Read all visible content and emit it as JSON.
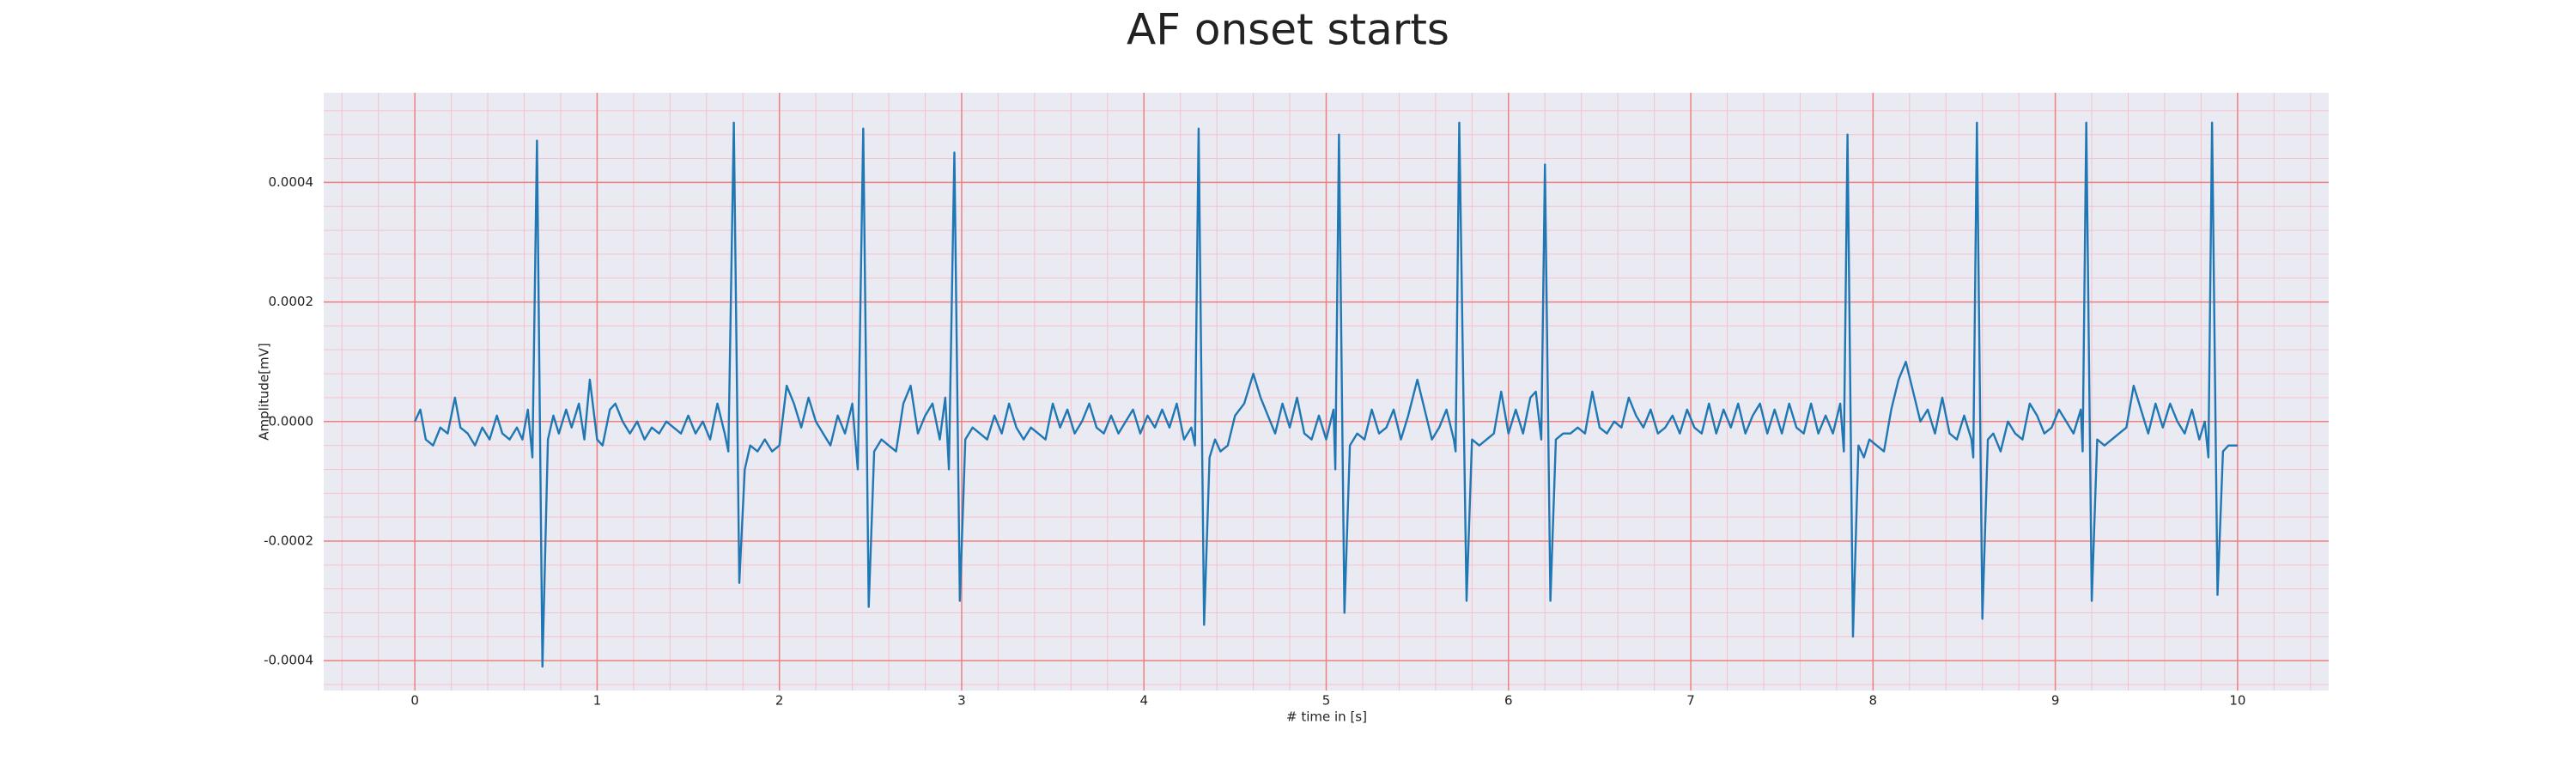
{
  "chart_data": {
    "type": "line",
    "title": "AF onset starts",
    "x_label": "# time in [s]",
    "y_label": "Amplitude[mV]",
    "color": "#1f77b4",
    "x": [
      0,
      0.03,
      0.06,
      0.1,
      0.14,
      0.18,
      0.22,
      0.25,
      0.29,
      0.33,
      0.37,
      0.41,
      0.45,
      0.48,
      0.52,
      0.56,
      0.59,
      0.62,
      0.645,
      0.67,
      0.7,
      0.73,
      0.76,
      0.79,
      0.83,
      0.86,
      0.9,
      0.93,
      0.96,
      1,
      1.03,
      1.07,
      1.1,
      1.14,
      1.18,
      1.22,
      1.26,
      1.3,
      1.34,
      1.38,
      1.42,
      1.46,
      1.5,
      1.54,
      1.58,
      1.62,
      1.66,
      1.7,
      1.72,
      1.75,
      1.78,
      1.81,
      1.84,
      1.88,
      1.92,
      1.96,
      2,
      2.04,
      2.08,
      2.12,
      2.16,
      2.2,
      2.24,
      2.28,
      2.32,
      2.36,
      2.4,
      2.43,
      2.46,
      2.49,
      2.52,
      2.56,
      2.6,
      2.64,
      2.68,
      2.72,
      2.76,
      2.8,
      2.84,
      2.88,
      2.91,
      2.93,
      2.96,
      2.99,
      3.02,
      3.06,
      3.1,
      3.14,
      3.18,
      3.22,
      3.26,
      3.3,
      3.34,
      3.38,
      3.42,
      3.46,
      3.5,
      3.54,
      3.58,
      3.62,
      3.66,
      3.7,
      3.74,
      3.78,
      3.82,
      3.86,
      3.9,
      3.94,
      3.98,
      4.02,
      4.06,
      4.1,
      4.14,
      4.18,
      4.22,
      4.26,
      4.28,
      4.3,
      4.33,
      4.36,
      4.39,
      4.42,
      4.46,
      4.5,
      4.55,
      4.6,
      4.64,
      4.68,
      4.72,
      4.76,
      4.8,
      4.84,
      4.88,
      4.92,
      4.96,
      5,
      5.04,
      5.05,
      5.07,
      5.1,
      5.13,
      5.17,
      5.21,
      5.25,
      5.29,
      5.33,
      5.37,
      5.41,
      5.45,
      5.5,
      5.54,
      5.58,
      5.62,
      5.66,
      5.7,
      5.71,
      5.73,
      5.77,
      5.8,
      5.84,
      5.88,
      5.92,
      5.96,
      6,
      6.04,
      6.08,
      6.12,
      6.15,
      6.18,
      6.2,
      6.23,
      6.26,
      6.3,
      6.34,
      6.38,
      6.42,
      6.46,
      6.5,
      6.54,
      6.58,
      6.62,
      6.66,
      6.7,
      6.74,
      6.78,
      6.82,
      6.86,
      6.9,
      6.94,
      6.98,
      7.02,
      7.06,
      7.1,
      7.14,
      7.18,
      7.22,
      7.26,
      7.3,
      7.34,
      7.38,
      7.42,
      7.46,
      7.5,
      7.54,
      7.58,
      7.62,
      7.66,
      7.7,
      7.74,
      7.78,
      7.82,
      7.84,
      7.86,
      7.89,
      7.92,
      7.95,
      7.98,
      8.02,
      8.06,
      8.1,
      8.14,
      8.18,
      8.22,
      8.26,
      8.3,
      8.34,
      8.38,
      8.42,
      8.46,
      8.5,
      8.54,
      8.55,
      8.57,
      8.6,
      8.63,
      8.66,
      8.7,
      8.74,
      8.78,
      8.82,
      8.86,
      8.9,
      8.94,
      8.98,
      9.02,
      9.06,
      9.1,
      9.14,
      9.15,
      9.17,
      9.2,
      9.23,
      9.27,
      9.31,
      9.35,
      9.39,
      9.43,
      9.47,
      9.51,
      9.55,
      9.59,
      9.63,
      9.67,
      9.71,
      9.75,
      9.79,
      9.82,
      9.84,
      9.86,
      9.89,
      9.92,
      9.95,
      9.98,
      10
    ],
    "values": [
      0,
      2e-05,
      -3e-05,
      -4e-05,
      -1e-05,
      -2e-05,
      4e-05,
      -1e-05,
      -2e-05,
      -4e-05,
      -1e-05,
      -3e-05,
      1e-05,
      -2e-05,
      -3e-05,
      -1e-05,
      -3e-05,
      2e-05,
      -6e-05,
      0.00047,
      -0.00041,
      -3e-05,
      1e-05,
      -2e-05,
      2e-05,
      -1e-05,
      3e-05,
      -3e-05,
      7e-05,
      -3e-05,
      -4e-05,
      2e-05,
      3e-05,
      0,
      -2e-05,
      0,
      -3e-05,
      -1e-05,
      -2e-05,
      0,
      -1e-05,
      -2e-05,
      1e-05,
      -2e-05,
      0,
      -3e-05,
      3e-05,
      -2e-05,
      -5e-05,
      0.0005,
      -0.00027,
      -8e-05,
      -4e-05,
      -5e-05,
      -3e-05,
      -5e-05,
      -4e-05,
      6e-05,
      3e-05,
      -1e-05,
      4e-05,
      0,
      -2e-05,
      -4e-05,
      1e-05,
      -2e-05,
      3e-05,
      -8e-05,
      0.00049,
      -0.00031,
      -5e-05,
      -3e-05,
      -4e-05,
      -5e-05,
      3e-05,
      6e-05,
      -2e-05,
      1e-05,
      3e-05,
      -3e-05,
      4e-05,
      -8e-05,
      0.00045,
      -0.0003,
      -3e-05,
      -1e-05,
      -2e-05,
      -3e-05,
      1e-05,
      -2e-05,
      3e-05,
      -1e-05,
      -3e-05,
      -1e-05,
      -2e-05,
      -3e-05,
      3e-05,
      -1e-05,
      2e-05,
      -2e-05,
      0,
      3e-05,
      -1e-05,
      -2e-05,
      1e-05,
      -2e-05,
      0,
      2e-05,
      -2e-05,
      1e-05,
      -1e-05,
      2e-05,
      -1e-05,
      3e-05,
      -3e-05,
      -1e-05,
      -4e-05,
      0.00049,
      -0.00034,
      -6e-05,
      -3e-05,
      -5e-05,
      -4e-05,
      1e-05,
      3e-05,
      8e-05,
      4e-05,
      1e-05,
      -2e-05,
      3e-05,
      -1e-05,
      4e-05,
      -2e-05,
      -3e-05,
      1e-05,
      -3e-05,
      2e-05,
      -8e-05,
      0.00048,
      -0.00032,
      -4e-05,
      -2e-05,
      -3e-05,
      2e-05,
      -2e-05,
      -1e-05,
      2e-05,
      -3e-05,
      1e-05,
      7e-05,
      2e-05,
      -3e-05,
      -1e-05,
      2e-05,
      -3e-05,
      -5e-05,
      0.0005,
      -0.0003,
      -3e-05,
      -4e-05,
      -3e-05,
      -2e-05,
      5e-05,
      -2e-05,
      2e-05,
      -2e-05,
      4e-05,
      5e-05,
      -3e-05,
      0.00043,
      -0.0003,
      -3e-05,
      -2e-05,
      -2e-05,
      -1e-05,
      -2e-05,
      5e-05,
      -1e-05,
      -2e-05,
      0,
      -1e-05,
      4e-05,
      1e-05,
      -1e-05,
      2e-05,
      -2e-05,
      -1e-05,
      1e-05,
      -2e-05,
      2e-05,
      -1e-05,
      -2e-05,
      3e-05,
      -2e-05,
      2e-05,
      -1e-05,
      3e-05,
      -2e-05,
      1e-05,
      3e-05,
      -2e-05,
      2e-05,
      -2e-05,
      3e-05,
      -1e-05,
      -2e-05,
      3e-05,
      -2e-05,
      1e-05,
      -2e-05,
      3e-05,
      -5e-05,
      0.00048,
      -0.00036,
      -4e-05,
      -6e-05,
      -3e-05,
      -4e-05,
      -5e-05,
      2e-05,
      7e-05,
      0.0001,
      5e-05,
      0,
      2e-05,
      -2e-05,
      4e-05,
      -2e-05,
      -3e-05,
      1e-05,
      -3e-05,
      -6e-05,
      0.0005,
      -0.00033,
      -3e-05,
      -2e-05,
      -5e-05,
      0,
      -2e-05,
      -3e-05,
      3e-05,
      1e-05,
      -2e-05,
      -1e-05,
      2e-05,
      0,
      -2e-05,
      2e-05,
      -5e-05,
      0.0005,
      -0.0003,
      -3e-05,
      -4e-05,
      -3e-05,
      -2e-05,
      -1e-05,
      6e-05,
      2e-05,
      -2e-05,
      3e-05,
      -1e-05,
      3e-05,
      0,
      -2e-05,
      2e-05,
      -3e-05,
      0,
      -6e-05,
      0.0005,
      -0.00029,
      -5e-05,
      -4e-05,
      -4e-05,
      -4e-05
    ],
    "xlim": [
      -0.5,
      10.5
    ],
    "ylim": [
      -0.00045,
      0.00055
    ],
    "xticks": [
      0,
      1,
      2,
      3,
      4,
      5,
      6,
      7,
      8,
      9,
      10
    ],
    "yticks": [
      -0.0004,
      -0.0002,
      {
        "value": 0,
        "label": "0.0000"
      },
      0.0002,
      0.0004
    ],
    "grid": true,
    "minor_grid": true,
    "xminorticks": [
      -0.4,
      -0.2,
      0,
      0.2,
      0.4,
      0.6,
      0.8,
      1,
      1.2,
      1.4,
      1.6,
      1.8,
      2,
      2.2,
      2.4,
      2.6,
      2.8,
      3,
      3.2,
      3.4,
      3.6,
      3.8,
      4,
      4.2,
      4.4,
      4.6,
      4.8,
      5,
      5.2,
      5.4,
      5.6,
      5.8,
      6,
      6.2,
      6.4,
      6.6,
      6.8,
      7,
      7.2,
      7.4,
      7.6,
      7.8,
      8,
      8.2,
      8.4,
      8.6,
      8.8,
      9,
      9.2,
      9.4,
      9.6,
      9.8,
      10,
      10.2,
      10.4
    ],
    "yminorticks": [
      -0.00044,
      -0.0004,
      -0.00036,
      -0.00032,
      -0.00028,
      -0.00024,
      -0.0002,
      -0.00016,
      -0.00012,
      -8e-05,
      -4e-05,
      0,
      4e-05,
      8e-05,
      0.00012,
      0.00016,
      0.0002,
      0.00024,
      0.00028,
      0.00032,
      0.00036,
      0.0004,
      0.00044,
      0.00048,
      0.00052
    ]
  }
}
